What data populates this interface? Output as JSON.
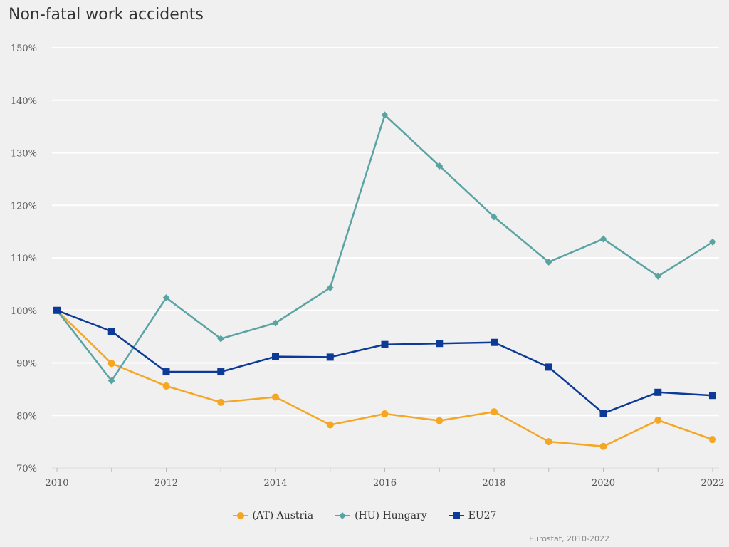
{
  "chart_data": {
    "type": "line",
    "title": "Non-fatal work accidents",
    "x": [
      2010,
      2011,
      2012,
      2013,
      2014,
      2015,
      2016,
      2017,
      2018,
      2019,
      2020,
      2021,
      2022
    ],
    "x_ticks": [
      "2010",
      "2012",
      "2014",
      "2016",
      "2018",
      "2020",
      "2022"
    ],
    "y_ticks": [
      "70%",
      "80%",
      "90%",
      "100%",
      "110%",
      "120%",
      "130%",
      "140%",
      "150%"
    ],
    "ylim": [
      70,
      150
    ],
    "grid": true,
    "legend_position": "bottom-center",
    "series": [
      {
        "name": "(AT) Austria",
        "color": "#f5a623",
        "marker": "circle",
        "values": [
          100,
          89.9,
          85.6,
          82.5,
          83.5,
          78.2,
          80.3,
          79.0,
          80.7,
          75.0,
          74.1,
          79.1,
          75.4
        ]
      },
      {
        "name": "(HU) Hungary",
        "color": "#5ba3a3",
        "marker": "diamond",
        "values": [
          100,
          86.6,
          102.4,
          94.6,
          97.6,
          104.3,
          137.2,
          127.5,
          117.8,
          109.2,
          113.6,
          106.5,
          113.0
        ]
      },
      {
        "name": "EU27",
        "color": "#0c3a96",
        "marker": "square",
        "values": [
          100,
          96.0,
          88.3,
          88.3,
          91.2,
          91.1,
          93.5,
          93.7,
          93.9,
          89.2,
          80.4,
          84.4,
          83.8
        ]
      }
    ]
  },
  "source": "Eurostat, 2010-2022"
}
